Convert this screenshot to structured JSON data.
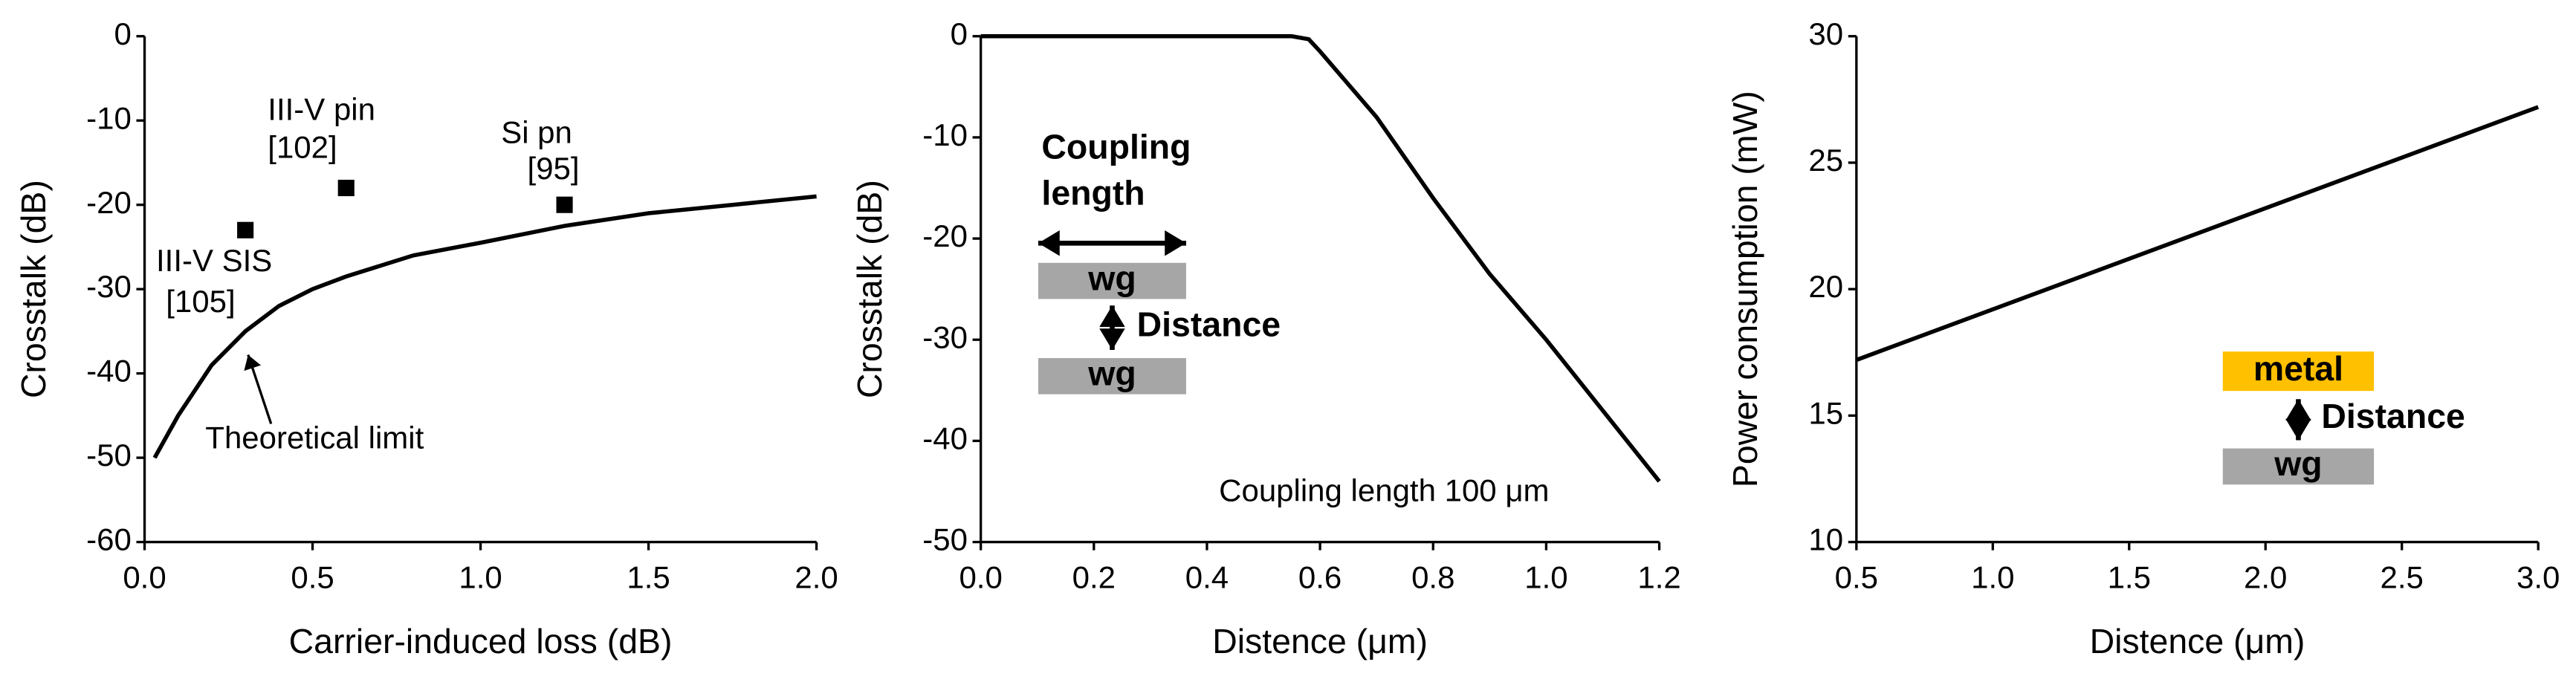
{
  "chart_data": [
    {
      "type": "line",
      "xlabel": "Carrier-induced loss (dB)",
      "ylabel": "Crosstalk (dB)",
      "xlim": [
        0,
        2
      ],
      "xticks": [
        {
          "value": 0,
          "label": "0.0"
        },
        0.5,
        {
          "value": 1,
          "label": "1.0"
        },
        1.5,
        {
          "value": 2,
          "label": "2.0"
        }
      ],
      "ylim": [
        -60,
        0
      ],
      "yticks": [
        0,
        -10,
        -20,
        -30,
        -40,
        -50,
        -60
      ],
      "series": [
        {
          "style": "line",
          "color": "#000000",
          "x": [
            0.03,
            0.1,
            0.2,
            0.3,
            0.4,
            0.5,
            0.6,
            0.8,
            1.0,
            1.25,
            1.5,
            1.75,
            2.0
          ],
          "values": [
            -50,
            -45,
            -39,
            -35,
            -32,
            -30,
            -28.5,
            -26,
            -24.5,
            -22.5,
            -21,
            -20,
            -19
          ]
        },
        {
          "style": "marker",
          "color": "#000000",
          "x": [
            0.3,
            0.6,
            1.25
          ],
          "values": [
            -23,
            -18,
            -20
          ]
        }
      ],
      "annotations": [
        "III-V pin",
        "[102]",
        "Si pn",
        "[95]",
        "III-V SIS",
        "[105]",
        "Theoretical limit"
      ]
    },
    {
      "type": "line",
      "xlabel": "Distence (μm)",
      "ylabel": "Crosstalk (dB)",
      "xlim": [
        0,
        1.2
      ],
      "xticks": [
        {
          "value": 0,
          "label": "0.0"
        },
        0.2,
        0.4,
        0.6,
        0.8,
        {
          "value": 1,
          "label": "1.0"
        },
        1.2
      ],
      "ylim": [
        -50,
        0
      ],
      "yticks": [
        0,
        -10,
        -20,
        -30,
        -40,
        -50
      ],
      "series": [
        {
          "style": "line",
          "color": "#000000",
          "x": [
            0,
            0.55,
            0.58,
            0.6,
            0.7,
            0.8,
            0.9,
            1.0,
            1.1,
            1.2
          ],
          "values": [
            0,
            0,
            -0.3,
            -1.5,
            -8,
            -16,
            -23.5,
            -30,
            -37,
            -44
          ]
        }
      ],
      "annotations": [
        "Coupling",
        "length",
        "wg",
        "Distance",
        "wg",
        "Coupling length 100 μm"
      ]
    },
    {
      "type": "line",
      "xlabel": "Distence (μm)",
      "ylabel": "Power consumption (mW)",
      "xlim": [
        0.5,
        3
      ],
      "xticks": [
        0.5,
        {
          "value": 1,
          "label": "1.0"
        },
        1.5,
        {
          "value": 2,
          "label": "2.0"
        },
        2.5,
        {
          "value": 3,
          "label": "3.0"
        }
      ],
      "ylim": [
        10,
        30
      ],
      "yticks": [
        10,
        15,
        20,
        25,
        30
      ],
      "series": [
        {
          "style": "line",
          "color": "#000000",
          "x": [
            0.5,
            3.0
          ],
          "values": [
            17.2,
            27.2
          ]
        }
      ],
      "annotations": [
        "metal",
        "Distance",
        "wg"
      ]
    }
  ]
}
